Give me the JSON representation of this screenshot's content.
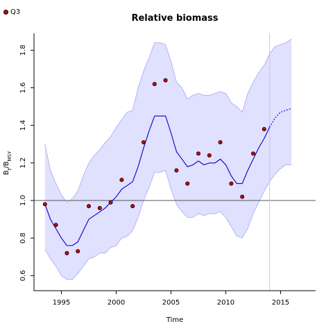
{
  "legend": {
    "label": "Q3"
  },
  "chart_data": {
    "type": "line",
    "title": "Relative biomass",
    "xlabel": "Time",
    "ylabel": {
      "main": "B",
      "sub1": "t",
      "sep": "/B",
      "sub2": "MSY"
    },
    "xlim": [
      1992.5,
      2018.2
    ],
    "ylim": [
      0.52,
      1.89
    ],
    "xticks": [
      1995,
      2000,
      2005,
      2010,
      2015
    ],
    "yticks": [
      0.6,
      0.8,
      1.0,
      1.2,
      1.4,
      1.6,
      1.8
    ],
    "reference_line_y": 1.0,
    "vertical_line_x": 2014,
    "colors": {
      "line": "#0000cc",
      "band_fill": "#e0e0ff",
      "band_edge": "#a8a8ee",
      "points": "#cc0000",
      "refline": "#555555",
      "vline": "#cccccc"
    },
    "series": [
      {
        "name": "Q3",
        "type": "scatter",
        "x": [
          1993.5,
          1994.5,
          1995.5,
          1996.5,
          1997.5,
          1998.5,
          1999.5,
          2000.5,
          2001.5,
          2002.5,
          2003.5,
          2004.5,
          2005.5,
          2006.5,
          2007.5,
          2008.5,
          2009.5,
          2010.5,
          2011.5,
          2012.5,
          2013.5
        ],
        "y": [
          0.98,
          0.87,
          0.72,
          0.73,
          0.97,
          0.96,
          0.99,
          1.11,
          0.97,
          1.31,
          1.62,
          1.64,
          1.16,
          1.09,
          1.25,
          1.24,
          1.31,
          1.09,
          1.02,
          1.25,
          1.38
        ]
      },
      {
        "type": "line",
        "x": [
          1993.5,
          1994.0,
          1994.5,
          1995.0,
          1995.5,
          1996.0,
          1996.5,
          1997.0,
          1997.5,
          1998.0,
          1998.5,
          1999.0,
          1999.5,
          2000.0,
          2000.5,
          2001.0,
          2001.5,
          2002.0,
          2002.5,
          2003.0,
          2003.5,
          2004.0,
          2004.5,
          2005.0,
          2005.5,
          2006.0,
          2006.5,
          2007.0,
          2007.5,
          2008.0,
          2008.5,
          2009.0,
          2009.5,
          2010.0,
          2010.5,
          2011.0,
          2011.5,
          2012.0,
          2012.5,
          2013.0,
          2013.5,
          2014.0
        ],
        "y": [
          0.98,
          0.9,
          0.85,
          0.8,
          0.76,
          0.76,
          0.78,
          0.84,
          0.9,
          0.92,
          0.94,
          0.96,
          0.99,
          1.02,
          1.06,
          1.08,
          1.1,
          1.18,
          1.28,
          1.37,
          1.45,
          1.45,
          1.45,
          1.36,
          1.26,
          1.22,
          1.18,
          1.19,
          1.21,
          1.19,
          1.2,
          1.2,
          1.22,
          1.19,
          1.13,
          1.09,
          1.09,
          1.16,
          1.22,
          1.28,
          1.33,
          1.39
        ]
      },
      {
        "type": "line-projected",
        "x": [
          2014.0,
          2014.5,
          2015.0,
          2015.5,
          2016.0
        ],
        "y": [
          1.39,
          1.44,
          1.47,
          1.48,
          1.49
        ]
      },
      {
        "type": "band-upper",
        "x": [
          1993.5,
          1994.0,
          1994.5,
          1995.0,
          1995.5,
          1996.0,
          1996.5,
          1997.0,
          1997.5,
          1998.0,
          1998.5,
          1999.0,
          1999.5,
          2000.0,
          2000.5,
          2001.0,
          2001.5,
          2002.0,
          2002.5,
          2003.0,
          2003.5,
          2004.0,
          2004.5,
          2005.0,
          2005.5,
          2006.0,
          2006.5,
          2007.0,
          2007.5,
          2008.0,
          2008.5,
          2009.0,
          2009.5,
          2010.0,
          2010.5,
          2011.0,
          2011.5,
          2012.0,
          2012.5,
          2013.0,
          2013.5,
          2014.0,
          2014.5,
          2015.0,
          2015.5,
          2016.0
        ],
        "y": [
          1.3,
          1.16,
          1.09,
          1.03,
          0.99,
          1.01,
          1.05,
          1.13,
          1.2,
          1.24,
          1.27,
          1.31,
          1.34,
          1.39,
          1.43,
          1.47,
          1.48,
          1.6,
          1.69,
          1.76,
          1.84,
          1.84,
          1.83,
          1.74,
          1.63,
          1.6,
          1.54,
          1.56,
          1.57,
          1.56,
          1.56,
          1.57,
          1.58,
          1.57,
          1.52,
          1.5,
          1.47,
          1.57,
          1.63,
          1.68,
          1.72,
          1.78,
          1.82,
          1.83,
          1.84,
          1.86
        ]
      },
      {
        "type": "band-lower",
        "x": [
          1993.5,
          1994.0,
          1994.5,
          1995.0,
          1995.5,
          1996.0,
          1996.5,
          1997.0,
          1997.5,
          1998.0,
          1998.5,
          1999.0,
          1999.5,
          2000.0,
          2000.5,
          2001.0,
          2001.5,
          2002.0,
          2002.5,
          2003.0,
          2003.5,
          2004.0,
          2004.5,
          2005.0,
          2005.5,
          2006.0,
          2006.5,
          2007.0,
          2007.5,
          2008.0,
          2008.5,
          2009.0,
          2009.5,
          2010.0,
          2010.5,
          2011.0,
          2011.5,
          2012.0,
          2012.5,
          2013.0,
          2013.5,
          2014.0,
          2014.5,
          2015.0,
          2015.5,
          2016.0
        ],
        "y": [
          0.74,
          0.69,
          0.65,
          0.6,
          0.58,
          0.58,
          0.61,
          0.65,
          0.69,
          0.7,
          0.72,
          0.72,
          0.75,
          0.76,
          0.8,
          0.81,
          0.84,
          0.91,
          1.0,
          1.07,
          1.15,
          1.15,
          1.16,
          1.06,
          0.98,
          0.94,
          0.91,
          0.91,
          0.93,
          0.92,
          0.93,
          0.93,
          0.94,
          0.91,
          0.86,
          0.81,
          0.8,
          0.85,
          0.93,
          0.99,
          1.05,
          1.1,
          1.14,
          1.17,
          1.19,
          1.19
        ]
      }
    ]
  }
}
